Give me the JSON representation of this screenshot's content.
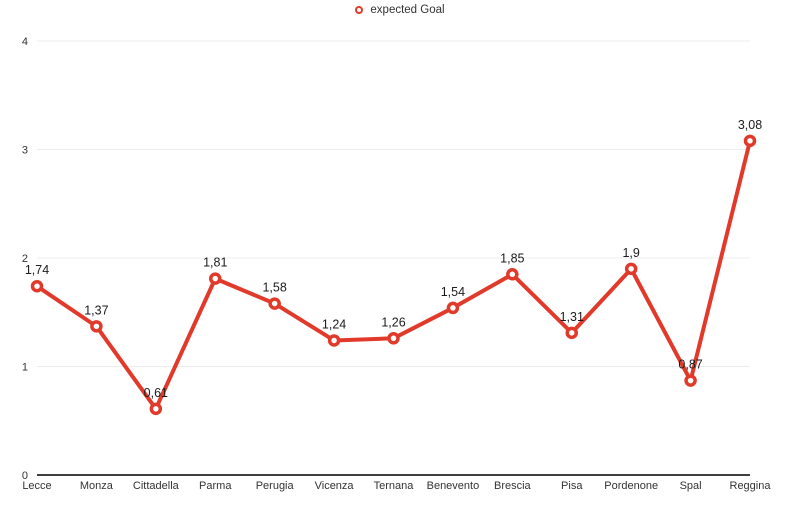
{
  "chart_data": {
    "type": "line",
    "title": "",
    "legend_position": "top-center",
    "grid": true,
    "categories": [
      "Lecce",
      "Monza",
      "Cittadella",
      "Parma",
      "Perugia",
      "Vicenza",
      "Ternana",
      "Benevento",
      "Brescia",
      "Pisa",
      "Pordenone",
      "Spal",
      "Reggina"
    ],
    "series": [
      {
        "name": "expected Goal",
        "values": [
          1.74,
          1.37,
          0.61,
          1.81,
          1.58,
          1.24,
          1.26,
          1.54,
          1.85,
          1.31,
          1.9,
          0.87,
          3.08
        ],
        "labels": [
          "1,74",
          "1,37",
          "0,61",
          "1,81",
          "1,58",
          "1,24",
          "1,26",
          "1,54",
          "1,85",
          "1,31",
          "1,9",
          "0,87",
          "3,08"
        ]
      }
    ],
    "xlabel": "",
    "ylabel": "",
    "ylim": [
      0,
      4
    ],
    "yticks": [
      "0",
      "1",
      "2",
      "3",
      "4"
    ],
    "colors": {
      "line": "#e23a2a",
      "marker_fill": "#ffffff",
      "grid": "#ececec",
      "axis": "#3f3f3f",
      "tick_text": "#333333",
      "data_label": "#1c1c1c"
    }
  }
}
